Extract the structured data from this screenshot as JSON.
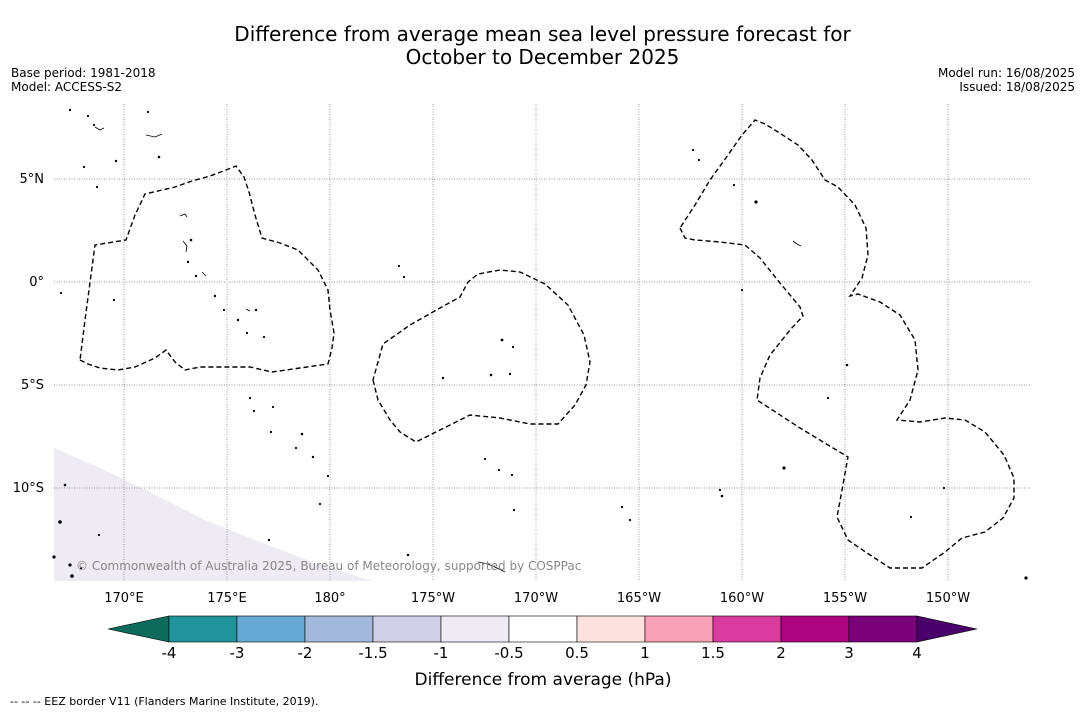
{
  "title_line1": "Difference from average mean sea level pressure forecast for",
  "title_line2": "October to December 2025",
  "base_period": "Base period: 1981-2018",
  "model": "Model: ACCESS-S2",
  "model_run": "Model run: 16/08/2025",
  "issued": "Issued: 18/08/2025",
  "copyright": "© Commonwealth of Australia 2025, Bureau of Meteorology, supported by COSPPac",
  "lat_labels": [
    "5°N",
    "0°",
    "5°S",
    "10°S"
  ],
  "lon_labels": [
    "170°E",
    "175°E",
    "180°",
    "175°W",
    "170°W",
    "165°W",
    "160°W",
    "155°W",
    "150°W"
  ],
  "colorbar": {
    "label": "Difference from average (hPa)",
    "ticks": [
      "-4",
      "-3",
      "-2",
      "-1.5",
      "-1",
      "-0.5",
      "0.5",
      "1",
      "1.5",
      "2",
      "3",
      "4"
    ],
    "colors": {
      "below_min": "#0e6b5c",
      "bins": [
        "#21939a",
        "#66a9d2",
        "#a3b9dc",
        "#cfd0e6",
        "#efebf4",
        "#ffffff",
        "#fde1e1",
        "#f7a1b7",
        "#d93c9d",
        "#ad0480",
        "#7a0177"
      ],
      "above_max": "#49006a"
    }
  },
  "footnote": "-- -- -- EEZ border V11 (Flanders Marine Institute, 2019).",
  "map_field_color": "#efebf4",
  "map_field_value": "-1 to -0.5 hPa in south-west corner; -0.5 to 0.5 hPa elsewhere"
}
